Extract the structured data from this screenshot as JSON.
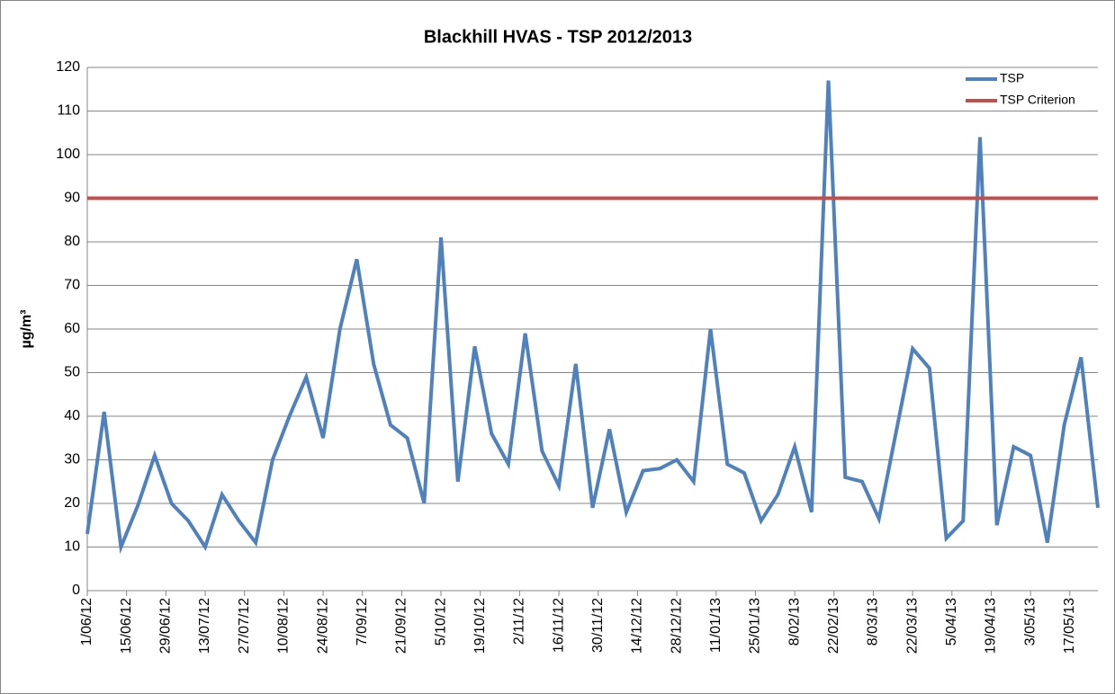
{
  "chart_data": {
    "type": "line",
    "title": "Blackhill HVAS - TSP 2012/2013",
    "y_label": "µg/m³",
    "x": [
      "2012-06-01",
      "2012-06-07",
      "2012-06-13",
      "2012-06-19",
      "2012-06-25",
      "2012-07-01",
      "2012-07-07",
      "2012-07-13",
      "2012-07-19",
      "2012-07-25",
      "2012-07-31",
      "2012-08-06",
      "2012-08-12",
      "2012-08-18",
      "2012-08-24",
      "2012-08-30",
      "2012-09-05",
      "2012-09-11",
      "2012-09-17",
      "2012-09-23",
      "2012-09-29",
      "2012-10-05",
      "2012-10-11",
      "2012-10-17",
      "2012-10-23",
      "2012-10-29",
      "2012-11-04",
      "2012-11-10",
      "2012-11-16",
      "2012-11-22",
      "2012-11-28",
      "2012-12-04",
      "2012-12-10",
      "2012-12-16",
      "2012-12-22",
      "2012-12-28",
      "2013-01-03",
      "2013-01-09",
      "2013-01-15",
      "2013-01-21",
      "2013-01-27",
      "2013-02-02",
      "2013-02-08",
      "2013-02-14",
      "2013-02-20",
      "2013-02-26",
      "2013-03-04",
      "2013-03-10",
      "2013-03-16",
      "2013-03-22",
      "2013-03-28",
      "2013-04-03",
      "2013-04-09",
      "2013-04-15",
      "2013-04-21",
      "2013-04-27",
      "2013-05-03",
      "2013-05-09",
      "2013-05-15",
      "2013-05-21",
      "2013-05-27"
    ],
    "series": [
      {
        "name": "TSP",
        "color": "#4f81bd",
        "values": [
          13,
          41,
          10,
          19.5,
          31,
          20,
          16,
          10,
          22,
          16,
          11,
          30,
          40,
          49,
          35,
          60,
          76,
          52,
          38,
          35,
          20,
          81,
          25,
          56,
          36,
          29,
          59,
          32,
          24,
          52,
          19,
          37,
          18,
          27.5,
          28,
          30,
          25,
          60,
          29,
          27,
          16,
          22,
          33,
          18,
          117,
          26,
          25,
          16.5,
          36,
          55.5,
          51,
          12,
          16,
          104,
          15,
          33,
          31,
          11,
          38,
          53.5,
          19
        ]
      },
      {
        "name": "TSP Criterion",
        "color": "#c0504d",
        "x": [
          "2012-06-01",
          "2013-05-27"
        ],
        "values": [
          90,
          90
        ]
      }
    ],
    "xlim": [
      "2012-06-01",
      "2013-05-27"
    ],
    "xticks": [
      {
        "value": "2012-06-01",
        "label": "1/06/12"
      },
      {
        "value": "2012-06-15",
        "label": "15/06/12"
      },
      {
        "value": "2012-06-29",
        "label": "29/06/12"
      },
      {
        "value": "2012-07-13",
        "label": "13/07/12"
      },
      {
        "value": "2012-07-27",
        "label": "27/07/12"
      },
      {
        "value": "2012-08-10",
        "label": "10/08/12"
      },
      {
        "value": "2012-08-24",
        "label": "24/08/12"
      },
      {
        "value": "2012-09-07",
        "label": "7/09/12"
      },
      {
        "value": "2012-09-21",
        "label": "21/09/12"
      },
      {
        "value": "2012-10-05",
        "label": "5/10/12"
      },
      {
        "value": "2012-10-19",
        "label": "19/10/12"
      },
      {
        "value": "2012-11-02",
        "label": "2/11/12"
      },
      {
        "value": "2012-11-16",
        "label": "16/11/12"
      },
      {
        "value": "2012-11-30",
        "label": "30/11/12"
      },
      {
        "value": "2012-12-14",
        "label": "14/12/12"
      },
      {
        "value": "2012-12-28",
        "label": "28/12/12"
      },
      {
        "value": "2013-01-11",
        "label": "11/01/13"
      },
      {
        "value": "2013-01-25",
        "label": "25/01/13"
      },
      {
        "value": "2013-02-08",
        "label": "8/02/13"
      },
      {
        "value": "2013-02-22",
        "label": "22/02/13"
      },
      {
        "value": "2013-03-08",
        "label": "8/03/13"
      },
      {
        "value": "2013-03-22",
        "label": "22/03/13"
      },
      {
        "value": "2013-04-05",
        "label": "5/04/13"
      },
      {
        "value": "2013-04-19",
        "label": "19/04/13"
      },
      {
        "value": "2013-05-03",
        "label": "3/05/13"
      },
      {
        "value": "2013-05-17",
        "label": "17/05/13"
      }
    ],
    "ylim": [
      0,
      120
    ],
    "yticks": [
      0,
      10,
      20,
      30,
      40,
      50,
      60,
      70,
      80,
      90,
      100,
      110,
      120
    ],
    "grid": true,
    "legend": "top-right"
  }
}
